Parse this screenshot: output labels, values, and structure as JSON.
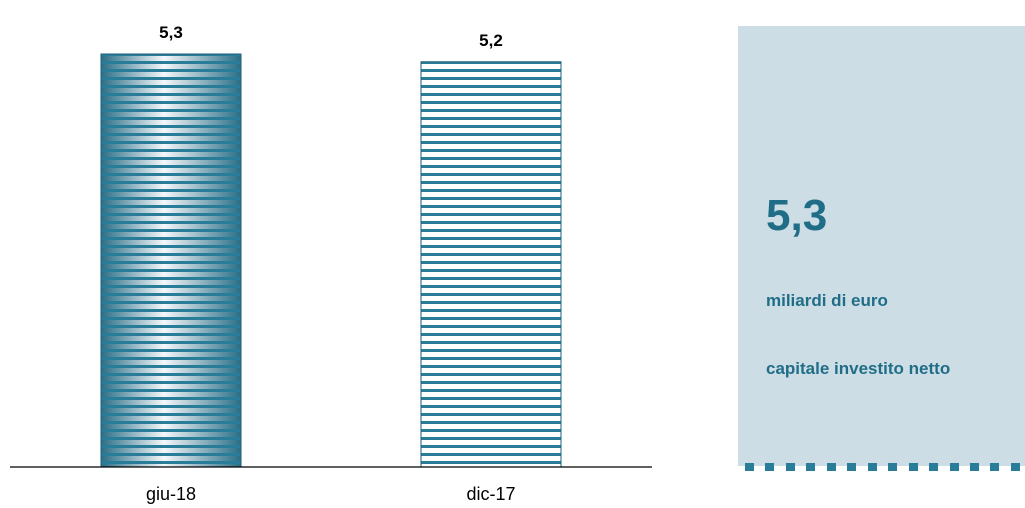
{
  "chart_data": {
    "type": "bar",
    "categories": [
      "giu-18",
      "dic-17"
    ],
    "values": [
      5.3,
      5.2
    ],
    "value_labels": [
      "5,3",
      "5,2"
    ],
    "title": "",
    "xlabel": "",
    "ylabel": "",
    "ylim": [
      0,
      5.45
    ],
    "grid": false,
    "legend": "none",
    "colors": {
      "bar_fill_1": "#2a7d99",
      "bar_fill_2": "#ffffff",
      "stripe": "#2a7d99"
    }
  },
  "side_panel": {
    "value": "5,3",
    "unit": "miliardi di euro",
    "description": "capitale investito netto",
    "colors": {
      "background": "#cddde5",
      "text": "#1f6d87",
      "dots": "#2a7d99"
    }
  }
}
